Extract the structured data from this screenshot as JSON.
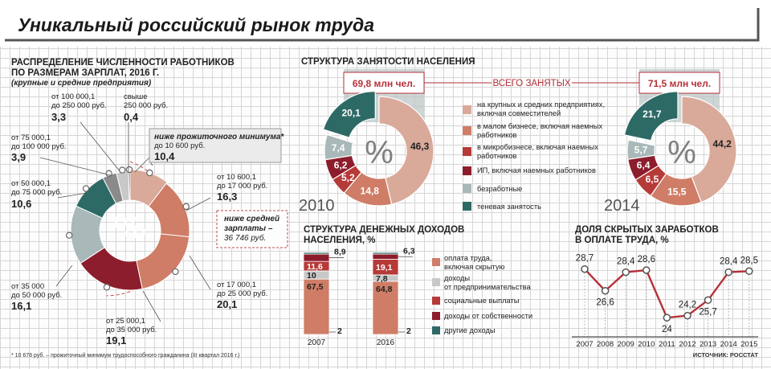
{
  "header": {
    "title": "Уникальный российский рынок труда"
  },
  "footnote": "* 10 678 руб. – прожиточный минимум трудоспособного гражданина (III квартал 2016 г.)",
  "source": "ИСТОЧНИК: РОССТАТ",
  "colors": {
    "pink": "#d9a99a",
    "salmon": "#cf7d67",
    "red": "#b63a38",
    "darkred": "#8c1d2c",
    "lightgray": "#a9b8b8",
    "teal": "#2e6a65",
    "gray": "#8a8a8a",
    "lightgray2": "#c8c8c8",
    "accent_red": "#b5313a"
  },
  "chart_data": [
    {
      "type": "pie",
      "id": "wages",
      "title": "РАСПРЕДЕЛЕНИЕ ЧИСЛЕННОСТИ РАБОТНИКОВ ПО РАЗМЕРАМ ЗАРПЛАТ, 2016 Г.",
      "title_lines": [
        "РАСПРЕДЕЛЕНИЕ ЧИСЛЕННОСТИ РАБОТНИКОВ",
        "ПО РАЗМЕРАМ ЗАРПЛАТ, 2016 Г."
      ],
      "subtitle": "(крупные и средние предприятия)",
      "center_symbol": "%",
      "slices": [
        {
          "range_lines": [
            "ниже прожиточного минимума*",
            "до 10 600 руб."
          ],
          "value": 10.4,
          "value_label": "10,4"
        },
        {
          "range_lines": [
            "от 10 600,1",
            "до 17 000 руб."
          ],
          "value": 16.3,
          "value_label": "16,3"
        },
        {
          "range_lines": [
            "от 17 000,1",
            "до 25 000 руб."
          ],
          "value": 20.1,
          "value_label": "20,1"
        },
        {
          "range_lines": [
            "от 25 000,1",
            "до 35 000 руб."
          ],
          "value": 19.1,
          "value_label": "19,1"
        },
        {
          "range_lines": [
            "от 35 000",
            "до 50 000 руб."
          ],
          "value": 16.1,
          "value_label": "16,1"
        },
        {
          "range_lines": [
            "от 50 000,1",
            "до 75 000 руб."
          ],
          "value": 10.6,
          "value_label": "10,6"
        },
        {
          "range_lines": [
            "от 75 000,1",
            "до 100 000 руб."
          ],
          "value": 3.9,
          "value_label": "3,9"
        },
        {
          "range_lines": [
            "от 100 000,1",
            "до 250 000 руб."
          ],
          "value": 3.3,
          "value_label": "3,3"
        },
        {
          "range_lines": [
            "свыше",
            "250 000 руб."
          ],
          "value": 0.4,
          "value_label": "0,4"
        }
      ],
      "annotation_lines": [
        "ниже средней",
        "зарплаты –",
        "36 746 руб."
      ]
    },
    {
      "type": "pie",
      "id": "employment",
      "title": "СТРУКТУРА ЗАНЯТОСТИ НАСЕЛЕНИЯ",
      "total_label": "ВСЕГО ЗАНЯТЫХ",
      "center_symbol": "%",
      "categories": [
        {
          "label_lines": [
            "на крупных и средних предприятиях,",
            "включая совместителей"
          ]
        },
        {
          "label_lines": [
            "в малом бизнесе, включая наемных",
            "работников"
          ]
        },
        {
          "label_lines": [
            "в микробизнесе, включая наемных",
            "работников"
          ]
        },
        {
          "label_lines": [
            "ИП, включая наемных работников"
          ]
        },
        {
          "label_lines": [
            "безработные"
          ]
        },
        {
          "label_lines": [
            "теневая занятость"
          ]
        }
      ],
      "years": [
        {
          "year": "2010",
          "total": "69,8 млн чел.",
          "values": [
            46.3,
            14.8,
            5.2,
            6.2,
            7.4,
            20.1
          ],
          "labels": [
            "46,3",
            "14,8",
            "5,2",
            "6,2",
            "7,4",
            "20,1"
          ]
        },
        {
          "year": "2014",
          "total": "71,5 млн чел.",
          "values": [
            44.2,
            15.5,
            6.5,
            6.4,
            5.7,
            21.7
          ],
          "labels": [
            "44,2",
            "15,5",
            "6,5",
            "6,4",
            "5,7",
            "21,7"
          ]
        }
      ]
    },
    {
      "type": "bar",
      "id": "income",
      "title": "СТРУКТУРА ДЕНЕЖНЫХ ДОХОДОВ НАСЕЛЕНИЯ, %",
      "title_lines": [
        "СТРУКТУРА ДЕНЕЖНЫХ ДОХОДОВ",
        "НАСЕЛЕНИЯ, %"
      ],
      "stacked": true,
      "categories": [
        "2007",
        "2016"
      ],
      "series": [
        {
          "name_lines": [
            "оплата труда,",
            "включая скрытую"
          ],
          "values": [
            67.5,
            64.8
          ],
          "labels": [
            "67,5",
            "64,8"
          ]
        },
        {
          "name_lines": [
            "доходы",
            "от предпринимательства"
          ],
          "values": [
            10,
            7.8
          ],
          "labels": [
            "10",
            "7,8"
          ]
        },
        {
          "name_lines": [
            "социальные выплаты"
          ],
          "values": [
            11.6,
            19.1
          ],
          "labels": [
            "11,6",
            "19,1"
          ]
        },
        {
          "name_lines": [
            "доходы от собственности"
          ],
          "values": [
            8.9,
            6.3
          ],
          "labels": [
            "8,9",
            "6,3"
          ]
        },
        {
          "name_lines": [
            "другие доходы"
          ],
          "values": [
            2,
            2
          ],
          "labels": [
            "2",
            "2"
          ]
        }
      ]
    },
    {
      "type": "line",
      "id": "hidden",
      "title": "ДОЛЯ СКРЫТЫХ ЗАРАБОТКОВ В ОПЛАТЕ ТРУДА, %",
      "title_lines": [
        "ДОЛЯ СКРЫТЫХ ЗАРАБОТКОВ",
        "В ОПЛАТЕ ТРУДА, %"
      ],
      "x": [
        "2007",
        "2008",
        "2009",
        "2010",
        "2011",
        "2012",
        "2013",
        "2014",
        "2015"
      ],
      "values": [
        28.7,
        26.6,
        28.4,
        28.6,
        24,
        24.2,
        25.7,
        28.4,
        28.5
      ],
      "labels": [
        "28,7",
        "26,6",
        "28,4",
        "28,6",
        "24",
        "24,2",
        "25,7",
        "28,4",
        "28,5"
      ],
      "ylim": [
        23,
        30
      ]
    }
  ]
}
